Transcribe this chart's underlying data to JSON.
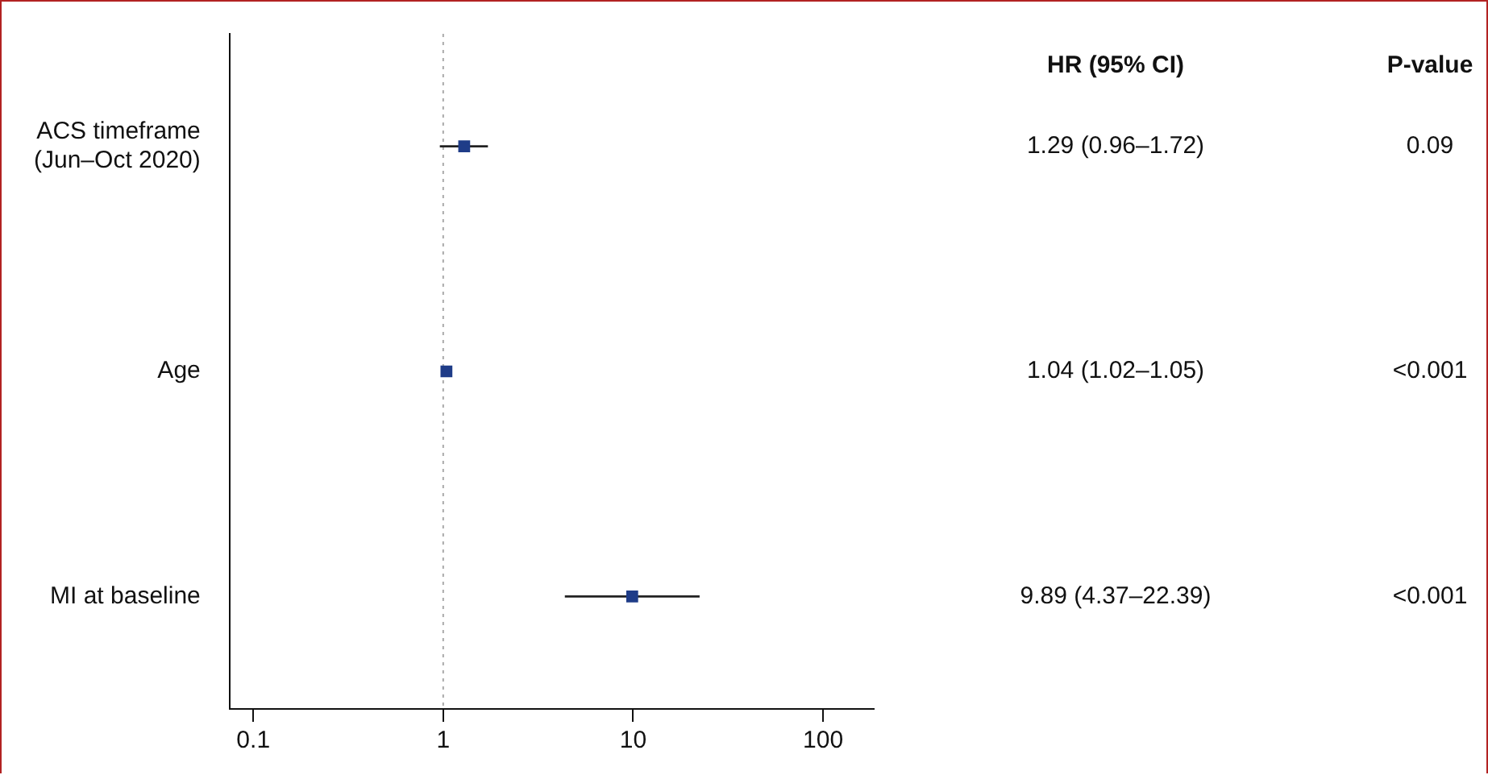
{
  "chart_data": {
    "type": "scatter",
    "orientation": "horizontal",
    "categories": [
      "ACS timeframe\n(Jun–Oct 2020)",
      "Age",
      "MI at baseline"
    ],
    "values": [
      1.29,
      1.04,
      9.89
    ],
    "errors": [
      [
        0.96,
        1.72
      ],
      [
        1.02,
        1.05
      ],
      [
        4.37,
        22.39
      ]
    ],
    "value_labels": [
      "1.29 (0.96–1.72)",
      "1.04 (1.02–1.05)",
      "9.89 (4.37–22.39)"
    ],
    "color": "#1f3c88",
    "marker": "square",
    "log": "x",
    "grid": false,
    "legend": false,
    "xlim": [
      0.075,
      185
    ],
    "xticks": [
      0.1,
      1,
      10,
      100
    ],
    "ref_lines": [
      {
        "axis": "x",
        "value": 1,
        "color": "#aaaaaa",
        "line_style": "dotted"
      }
    ],
    "annotations": [
      "HR (95% CI)",
      "P-value",
      "0.09",
      "<0.001",
      "<0.001"
    ]
  }
}
